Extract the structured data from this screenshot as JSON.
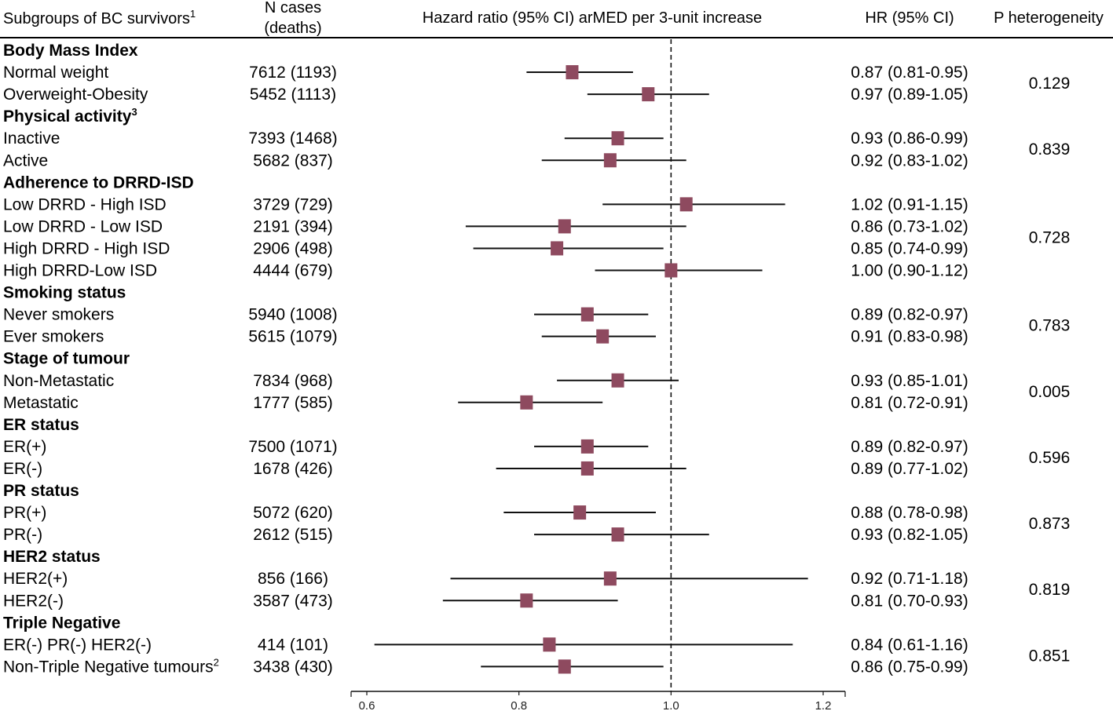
{
  "chart_data": {
    "type": "forest",
    "headers": {
      "subgroup": "Subgroups of BC survivors",
      "subgroup_sup": "1",
      "n_cases_line1": "N cases",
      "n_cases_line2": "(deaths)",
      "plot_title": "Hazard ratio (95% CI) arMED per 3-unit increase",
      "hr": "HR (95% CI)",
      "p": "P heterogeneity"
    },
    "x_axis": {
      "min": 0.6,
      "max": 1.2,
      "reference": 1.0,
      "ticks": [
        {
          "value": 0.6,
          "label": "0.6"
        },
        {
          "value": 0.8,
          "label": "0.8"
        },
        {
          "value": 1.0,
          "label": "1.0"
        },
        {
          "value": 1.2,
          "label": "1.2"
        }
      ]
    },
    "marker_color": "#8e4a5f",
    "groups": [
      {
        "title": "Body Mass Index",
        "title_sup": "",
        "p": "0.129",
        "rows": [
          {
            "label": "Normal weight",
            "label_sup": "",
            "n": "7612 (1193)",
            "hr": 0.87,
            "lo": 0.81,
            "hi": 0.95,
            "hr_text": "0.87 (0.81-0.95)"
          },
          {
            "label": "Overweight-Obesity",
            "label_sup": "",
            "n": "5452 (1113)",
            "hr": 0.97,
            "lo": 0.89,
            "hi": 1.05,
            "hr_text": "0.97 (0.89-1.05)"
          }
        ]
      },
      {
        "title": "Physical activity",
        "title_sup": "3",
        "p": "0.839",
        "rows": [
          {
            "label": "Inactive",
            "label_sup": "",
            "n": "7393 (1468)",
            "hr": 0.93,
            "lo": 0.86,
            "hi": 0.99,
            "hr_text": "0.93 (0.86-0.99)"
          },
          {
            "label": "Active",
            "label_sup": "",
            "n": "5682 (837)",
            "hr": 0.92,
            "lo": 0.83,
            "hi": 1.02,
            "hr_text": "0.92 (0.83-1.02)"
          }
        ]
      },
      {
        "title": "Adherence to DRRD-ISD",
        "title_sup": "",
        "p": "0.728",
        "rows": [
          {
            "label": "Low DRRD - High ISD",
            "label_sup": "",
            "n": "3729 (729)",
            "hr": 1.02,
            "lo": 0.91,
            "hi": 1.15,
            "hr_text": "1.02 (0.91-1.15)"
          },
          {
            "label": "Low DRRD - Low ISD",
            "label_sup": "",
            "n": "2191 (394)",
            "hr": 0.86,
            "lo": 0.73,
            "hi": 1.02,
            "hr_text": "0.86 (0.73-1.02)"
          },
          {
            "label": "High DRRD - High ISD",
            "label_sup": "",
            "n": "2906 (498)",
            "hr": 0.85,
            "lo": 0.74,
            "hi": 0.99,
            "hr_text": "0.85 (0.74-0.99)"
          },
          {
            "label": "High DRRD-Low ISD",
            "label_sup": "",
            "n": "4444 (679)",
            "hr": 1.0,
            "lo": 0.9,
            "hi": 1.12,
            "hr_text": "1.00 (0.90-1.12)"
          }
        ]
      },
      {
        "title": "Smoking status",
        "title_sup": "",
        "p": "0.783",
        "rows": [
          {
            "label": "Never smokers",
            "label_sup": "",
            "n": "5940 (1008)",
            "hr": 0.89,
            "lo": 0.82,
            "hi": 0.97,
            "hr_text": "0.89 (0.82-0.97)"
          },
          {
            "label": "Ever smokers",
            "label_sup": "",
            "n": "5615 (1079)",
            "hr": 0.91,
            "lo": 0.83,
            "hi": 0.98,
            "hr_text": "0.91 (0.83-0.98)"
          }
        ]
      },
      {
        "title": "Stage of tumour",
        "title_sup": "",
        "p": "0.005",
        "rows": [
          {
            "label": "Non-Metastatic",
            "label_sup": "",
            "n": "7834 (968)",
            "hr": 0.93,
            "lo": 0.85,
            "hi": 1.01,
            "hr_text": "0.93 (0.85-1.01)"
          },
          {
            "label": "Metastatic",
            "label_sup": "",
            "n": "1777 (585)",
            "hr": 0.81,
            "lo": 0.72,
            "hi": 0.91,
            "hr_text": "0.81 (0.72-0.91)"
          }
        ]
      },
      {
        "title": "ER status",
        "title_sup": "",
        "p": "0.596",
        "rows": [
          {
            "label": "ER(+)",
            "label_sup": "",
            "n": "7500 (1071)",
            "hr": 0.89,
            "lo": 0.82,
            "hi": 0.97,
            "hr_text": "0.89 (0.82-0.97)"
          },
          {
            "label": "ER(-)",
            "label_sup": "",
            "n": "1678 (426)",
            "hr": 0.89,
            "lo": 0.77,
            "hi": 1.02,
            "hr_text": "0.89 (0.77-1.02)"
          }
        ]
      },
      {
        "title": "PR status",
        "title_sup": "",
        "p": "0.873",
        "rows": [
          {
            "label": "PR(+)",
            "label_sup": "",
            "n": "5072 (620)",
            "hr": 0.88,
            "lo": 0.78,
            "hi": 0.98,
            "hr_text": "0.88 (0.78-0.98)"
          },
          {
            "label": "PR(-)",
            "label_sup": "",
            "n": "2612 (515)",
            "hr": 0.93,
            "lo": 0.82,
            "hi": 1.05,
            "hr_text": "0.93 (0.82-1.05)"
          }
        ]
      },
      {
        "title": "HER2 status",
        "title_sup": "",
        "p": "0.819",
        "rows": [
          {
            "label": "HER2(+)",
            "label_sup": "",
            "n": "856 (166)",
            "hr": 0.92,
            "lo": 0.71,
            "hi": 1.18,
            "hr_text": "0.92 (0.71-1.18)"
          },
          {
            "label": "HER2(-)",
            "label_sup": "",
            "n": "3587 (473)",
            "hr": 0.81,
            "lo": 0.7,
            "hi": 0.93,
            "hr_text": "0.81 (0.70-0.93)"
          }
        ]
      },
      {
        "title": "Triple Negative",
        "title_sup": "",
        "p": "0.851",
        "rows": [
          {
            "label": "ER(-) PR(-) HER2(-)",
            "label_sup": "",
            "n": "414 (101)",
            "hr": 0.84,
            "lo": 0.61,
            "hi": 1.16,
            "hr_text": "0.84 (0.61-1.16)"
          },
          {
            "label": "Non-Triple Negative tumours",
            "label_sup": "2",
            "n": "3438 (430)",
            "hr": 0.86,
            "lo": 0.75,
            "hi": 0.99,
            "hr_text": "0.86 (0.75-0.99)"
          }
        ]
      }
    ]
  }
}
